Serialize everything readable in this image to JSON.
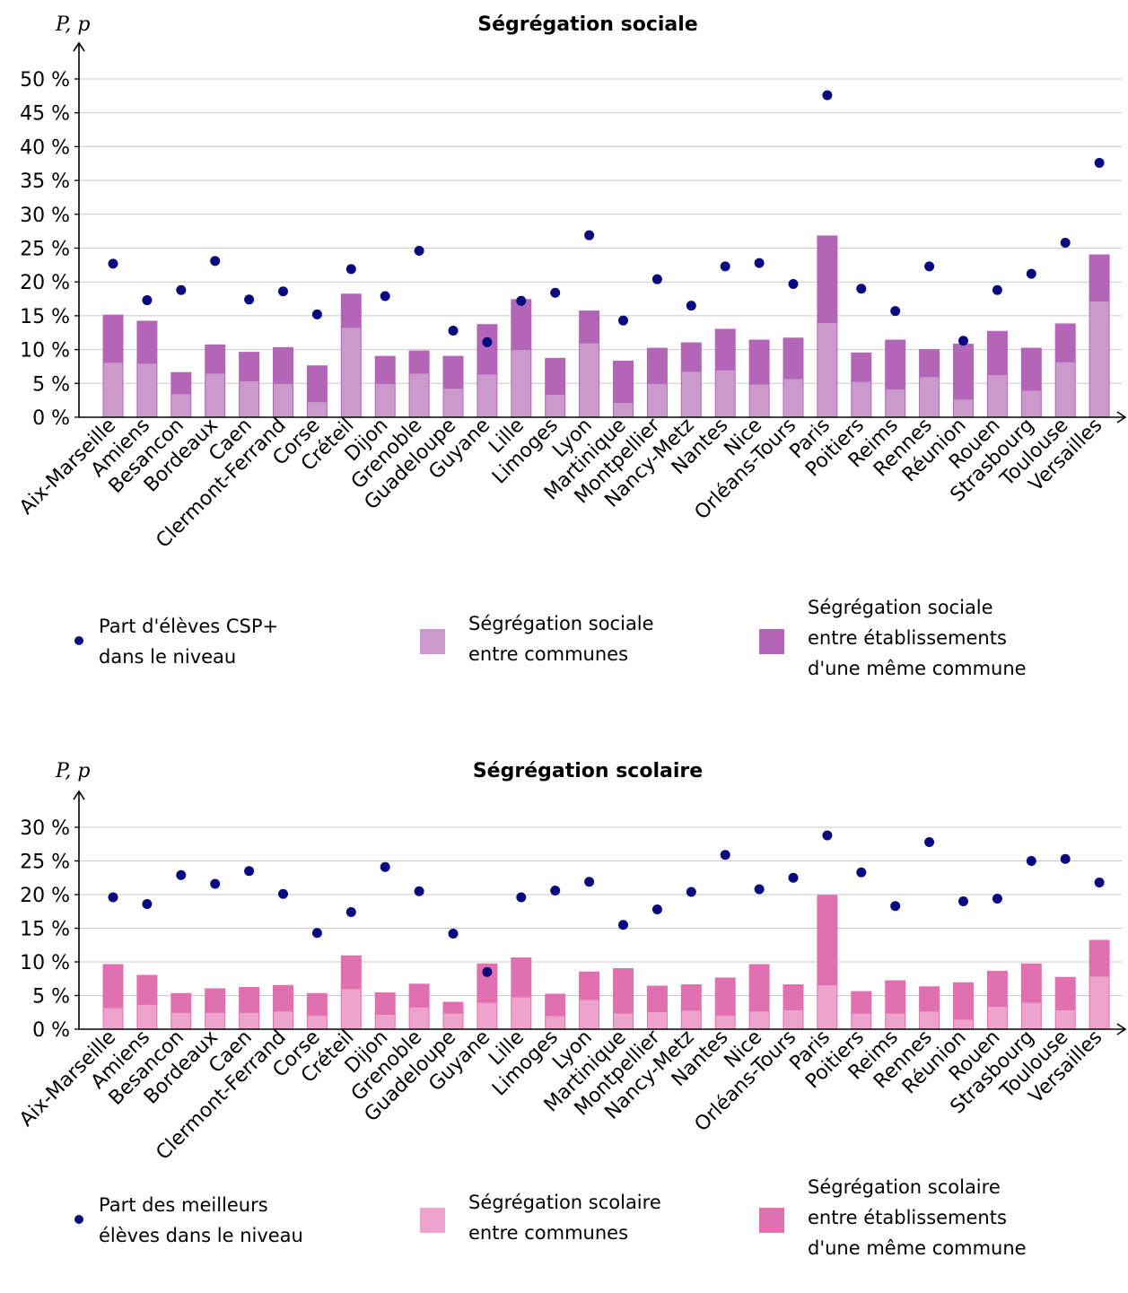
{
  "charts": [
    {
      "title": "Ségrégation sociale",
      "ylabel": "P, p",
      "legend": {
        "dot_label": [
          "Part d'élèves CSP+",
          "dans le niveau"
        ],
        "light_label": [
          "Ségrégation sociale",
          "entre communes"
        ],
        "dark_label": [
          "Ségrégation sociale",
          "entre établissements",
          "d'une même commune"
        ]
      }
    },
    {
      "title": "Ségrégation scolaire",
      "ylabel": "P, p",
      "legend": {
        "dot_label": [
          "Part des meilleurs",
          "élèves dans le niveau"
        ],
        "light_label": [
          "Ségrégation scolaire",
          "entre communes"
        ],
        "dark_label": [
          "Ségrégation scolaire",
          "entre établissements",
          "d'une même commune"
        ]
      }
    }
  ],
  "chart_data": [
    {
      "type": "bar",
      "stacked": true,
      "title": "Ségrégation sociale",
      "ylabel": "P, p",
      "ylim": [
        0,
        50
      ],
      "yticks": [
        0,
        5,
        10,
        15,
        20,
        25,
        30,
        35,
        40,
        45,
        50
      ],
      "ytick_suffix": " %",
      "grid": true,
      "colors": {
        "light": "#cc99cc",
        "dark": "#b366b8",
        "dot": "#0a0a80"
      },
      "categories": [
        "Aix-Marseille",
        "Amiens",
        "Besancon",
        "Bordeaux",
        "Caen",
        "Clermont-Ferrand",
        "Corse",
        "Créteil",
        "Dijon",
        "Grenoble",
        "Guadeloupe",
        "Guyane",
        "Lille",
        "Limoges",
        "Lyon",
        "Martinique",
        "Montpellier",
        "Nancy-Metz",
        "Nantes",
        "Nice",
        "Orléans-Tours",
        "Paris",
        "Poitiers",
        "Reims",
        "Rennes",
        "Réunion",
        "Rouen",
        "Strasbourg",
        "Toulouse",
        "Versailles"
      ],
      "series": [
        {
          "name": "Ségrégation sociale entre communes",
          "kind": "bar",
          "values": [
            8.1,
            8.0,
            3.5,
            6.5,
            5.4,
            5.0,
            2.3,
            13.3,
            5.0,
            6.5,
            4.3,
            6.4,
            10.0,
            3.4,
            11.0,
            2.2,
            5.0,
            6.8,
            7.0,
            4.9,
            5.7,
            14.0,
            5.3,
            4.2,
            6.0,
            2.7,
            6.3,
            4.0,
            8.2,
            17.2
          ]
        },
        {
          "name": "Ségrégation sociale entre établissements d'une même commune",
          "kind": "bar",
          "values": [
            7.0,
            6.2,
            3.1,
            4.2,
            4.2,
            5.3,
            5.3,
            4.9,
            4.0,
            3.3,
            4.7,
            7.3,
            7.4,
            5.3,
            4.7,
            6.1,
            5.2,
            4.2,
            6.0,
            6.5,
            6.0,
            12.8,
            4.2,
            7.2,
            4.0,
            8.1,
            6.4,
            6.2,
            5.6,
            6.8
          ]
        },
        {
          "name": "Part d'élèves CSP+ dans le niveau",
          "kind": "dot",
          "values": [
            22.7,
            17.3,
            18.8,
            23.1,
            17.4,
            18.6,
            15.2,
            21.9,
            17.9,
            24.6,
            12.8,
            11.1,
            17.2,
            18.4,
            26.9,
            14.3,
            20.4,
            16.5,
            22.3,
            22.8,
            19.7,
            47.6,
            19.0,
            15.7,
            22.3,
            11.3,
            18.8,
            21.2,
            25.8,
            37.6
          ]
        }
      ]
    },
    {
      "type": "bar",
      "stacked": true,
      "title": "Ségrégation scolaire",
      "ylabel": "P, p",
      "ylim": [
        0,
        30
      ],
      "yticks": [
        0,
        5,
        10,
        15,
        20,
        25,
        30
      ],
      "ytick_suffix": " %",
      "grid": true,
      "colors": {
        "light": "#eea3cc",
        "dark": "#e070b0",
        "dot": "#0a0a80"
      },
      "categories": [
        "Aix-Marseille",
        "Amiens",
        "Besancon",
        "Bordeaux",
        "Caen",
        "Clermont-Ferrand",
        "Corse",
        "Créteil",
        "Dijon",
        "Grenoble",
        "Guadeloupe",
        "Guyane",
        "Lille",
        "Limoges",
        "Lyon",
        "Martinique",
        "Montpellier",
        "Nancy-Metz",
        "Nantes",
        "Nice",
        "Orléans-Tours",
        "Paris",
        "Poitiers",
        "Reims",
        "Rennes",
        "Réunion",
        "Rouen",
        "Strasbourg",
        "Toulouse",
        "Versailles"
      ],
      "series": [
        {
          "name": "Ségrégation scolaire entre communes",
          "kind": "bar",
          "values": [
            3.2,
            3.7,
            2.5,
            2.5,
            2.5,
            2.7,
            2.1,
            6.0,
            2.2,
            3.3,
            2.4,
            4.0,
            4.8,
            2.0,
            4.4,
            2.4,
            2.6,
            2.8,
            2.1,
            2.7,
            2.9,
            6.6,
            2.4,
            2.4,
            2.7,
            1.5,
            3.4,
            4.0,
            2.9,
            7.9
          ]
        },
        {
          "name": "Ségrégation scolaire entre établissements d'une même commune",
          "kind": "bar",
          "values": [
            6.4,
            4.3,
            2.8,
            3.5,
            3.7,
            3.8,
            3.2,
            4.9,
            3.2,
            3.4,
            1.6,
            5.7,
            5.8,
            3.2,
            4.1,
            6.6,
            3.8,
            3.8,
            5.5,
            6.9,
            3.7,
            13.3,
            3.2,
            4.8,
            3.6,
            5.4,
            5.2,
            5.7,
            4.8,
            5.3
          ]
        },
        {
          "name": "Part des meilleurs élèves dans le niveau",
          "kind": "dot",
          "values": [
            19.6,
            18.6,
            22.9,
            21.6,
            23.5,
            20.1,
            14.3,
            17.4,
            24.1,
            20.5,
            14.2,
            8.5,
            19.6,
            20.6,
            21.9,
            15.5,
            17.8,
            20.4,
            25.9,
            20.8,
            22.5,
            28.8,
            23.3,
            18.3,
            27.8,
            19.0,
            19.4,
            25.0,
            25.3,
            21.8
          ]
        }
      ]
    }
  ]
}
